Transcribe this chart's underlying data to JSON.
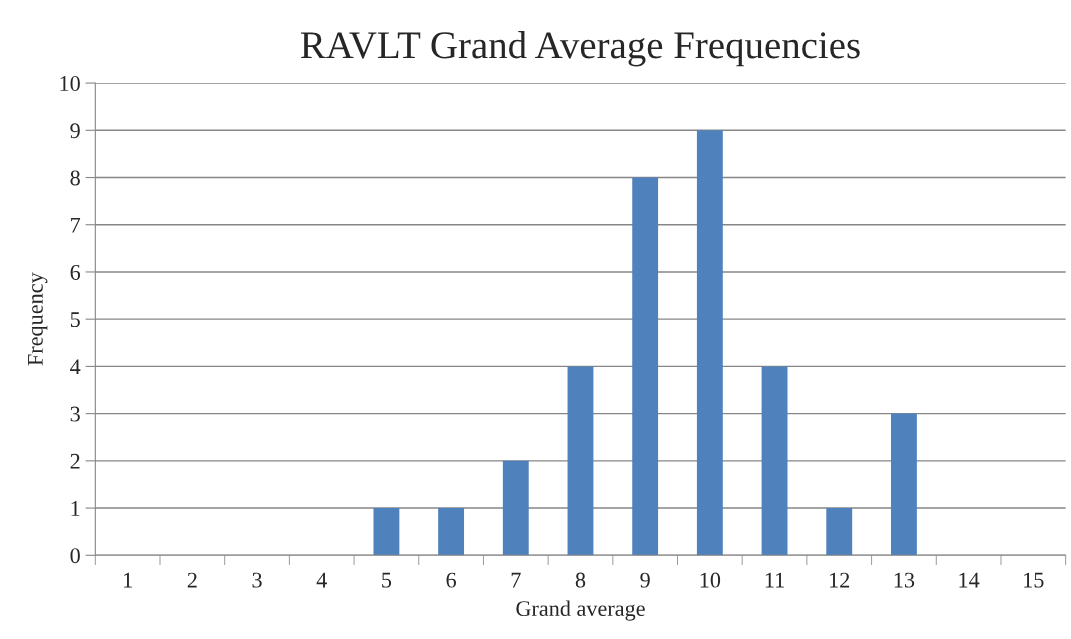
{
  "chart_data": {
    "type": "bar",
    "title": "RAVLT Grand Average Frequencies",
    "xlabel": "Grand average",
    "ylabel": "Frequency",
    "categories": [
      "1",
      "2",
      "3",
      "4",
      "5",
      "6",
      "7",
      "8",
      "9",
      "10",
      "11",
      "12",
      "13",
      "14",
      "15"
    ],
    "values": [
      0,
      0,
      0,
      0,
      1,
      1,
      2,
      4,
      8,
      9,
      4,
      1,
      3,
      0,
      0
    ],
    "color": "#4f81bd",
    "ylim": [
      0,
      10
    ],
    "yticks": [
      0,
      1,
      2,
      3,
      4,
      5,
      6,
      7,
      8,
      9,
      10
    ],
    "grid": "y",
    "legend": false
  }
}
